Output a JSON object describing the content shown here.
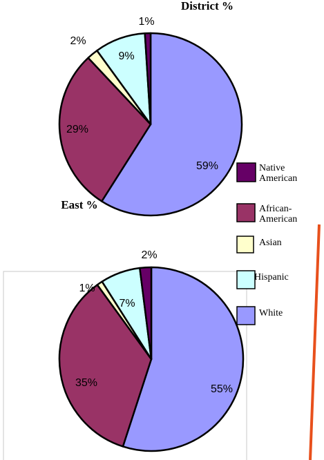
{
  "chart_data": [
    {
      "type": "pie",
      "title": "District %",
      "categories": [
        "White",
        "African-American",
        "Asian",
        "Hispanic",
        "Native American"
      ],
      "values": [
        59,
        29,
        2,
        9,
        1
      ],
      "value_labels": [
        "59%",
        "29%",
        "2%",
        "9%",
        "1%"
      ],
      "colors": [
        "#9999ff",
        "#993366",
        "#ffffcc",
        "#ccffff",
        "#660066"
      ]
    },
    {
      "type": "pie",
      "title": "East %",
      "categories": [
        "White",
        "African-American",
        "Asian",
        "Hispanic",
        "Native American"
      ],
      "values": [
        55,
        35,
        1,
        7,
        2
      ],
      "value_labels": [
        "55%",
        "35%",
        "1%",
        "7%",
        "2%"
      ],
      "colors": [
        "#9999ff",
        "#993366",
        "#ffffcc",
        "#ccffff",
        "#660066"
      ]
    }
  ]
}
